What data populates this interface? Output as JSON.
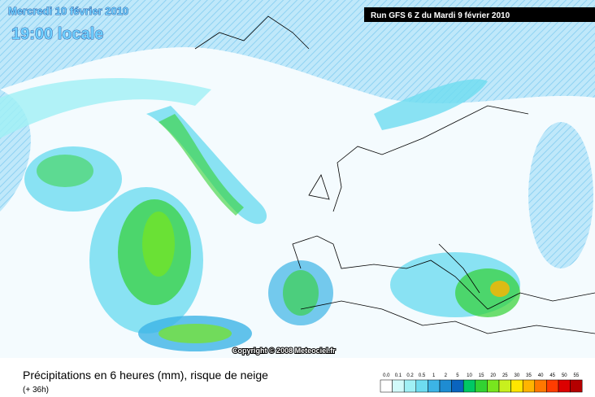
{
  "map": {
    "date": "Mercredi 10 février 2010",
    "time": "19:00 locale",
    "run": "Run GFS 6 Z du Mardi 9 février 2010",
    "copyright": "Copyright © 2008 Meteociel.fr"
  },
  "legend": {
    "title": "Précipitations en 6 heures (mm), risque de neige",
    "lead": "(+ 36h)",
    "ticks": [
      {
        "value": 0,
        "label": "0.0"
      },
      0.1,
      0.2,
      0.5,
      1,
      2,
      5,
      10,
      15,
      20,
      25,
      30,
      35,
      40,
      45,
      50,
      55
    ],
    "colors": [
      "#ffffff",
      "#d2fafa",
      "#a0f0f5",
      "#6edcf0",
      "#3cb4e6",
      "#1e8cd2",
      "#0a64be",
      "#00c864",
      "#32d232",
      "#78e61e",
      "#c8f01e",
      "#ffe600",
      "#ffb400",
      "#ff7800",
      "#ff3c00",
      "#dc0000",
      "#b40000"
    ]
  }
}
